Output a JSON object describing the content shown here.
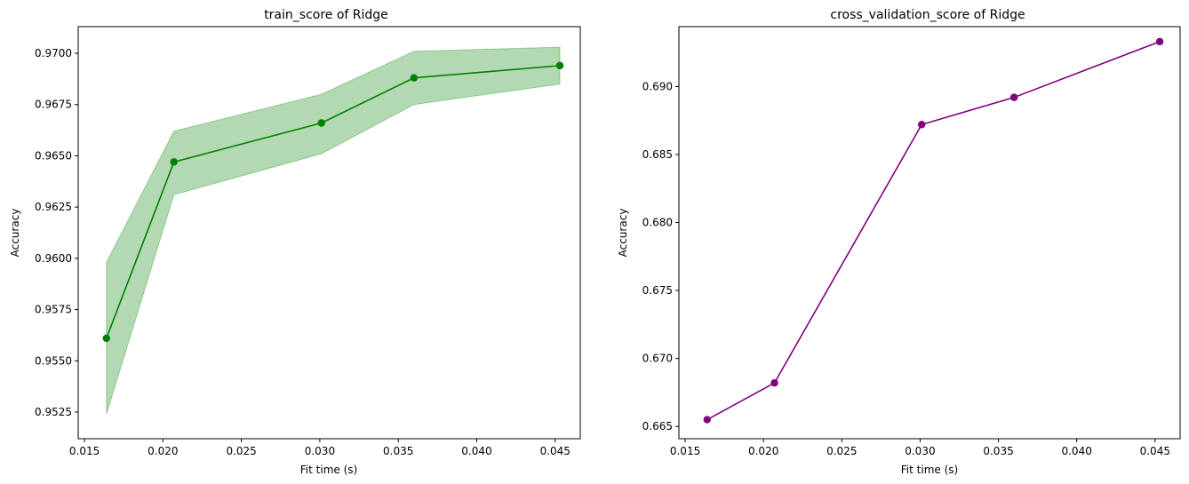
{
  "chart_data": [
    {
      "type": "line",
      "title": "train_score of Ridge",
      "xlabel": "Fit time (s)",
      "ylabel": "Accuracy",
      "xlim": [
        0.0146,
        0.0466
      ],
      "ylim": [
        0.9512,
        0.9713
      ],
      "xticks": [
        "0.015",
        "0.020",
        "0.025",
        "0.030",
        "0.035",
        "0.040",
        "0.045"
      ],
      "xtick_values": [
        0.015,
        0.02,
        0.025,
        0.03,
        0.035,
        0.04,
        0.045
      ],
      "yticks": [
        "0.9525",
        "0.9550",
        "0.9575",
        "0.9600",
        "0.9625",
        "0.9650",
        "0.9675",
        "0.9700"
      ],
      "ytick_values": [
        0.9525,
        0.955,
        0.9575,
        0.96,
        0.9625,
        0.965,
        0.9675,
        0.97
      ],
      "grid": false,
      "line_color": "#008000",
      "band_color": "#008000",
      "x": [
        0.0164,
        0.0207,
        0.0301,
        0.036,
        0.0453
      ],
      "y": [
        0.9561,
        0.9647,
        0.9666,
        0.9688,
        0.9694
      ],
      "band_lower": [
        0.9524,
        0.9631,
        0.9651,
        0.9675,
        0.9685
      ],
      "band_upper": [
        0.9598,
        0.9662,
        0.968,
        0.9701,
        0.9703
      ]
    },
    {
      "type": "line",
      "title": "cross_validation_score of Ridge",
      "xlabel": "Fit time (s)",
      "ylabel": "Accuracy",
      "xlim": [
        0.0146,
        0.0466
      ],
      "ylim": [
        0.6641,
        0.6944
      ],
      "xticks": [
        "0.015",
        "0.020",
        "0.025",
        "0.030",
        "0.035",
        "0.040",
        "0.045"
      ],
      "xtick_values": [
        0.015,
        0.02,
        0.025,
        0.03,
        0.035,
        0.04,
        0.045
      ],
      "yticks": [
        "0.665",
        "0.670",
        "0.675",
        "0.680",
        "0.685",
        "0.690"
      ],
      "ytick_values": [
        0.665,
        0.67,
        0.675,
        0.68,
        0.685,
        0.69
      ],
      "grid": false,
      "line_color": "#800080",
      "x": [
        0.0164,
        0.0207,
        0.0301,
        0.036,
        0.0453
      ],
      "y": [
        0.6655,
        0.6682,
        0.6872,
        0.6892,
        0.6933
      ]
    }
  ]
}
